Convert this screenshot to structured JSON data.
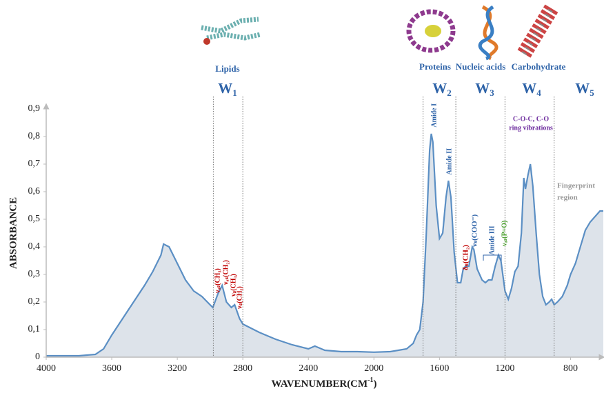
{
  "chart_data": {
    "type": "area",
    "y_label": "ABSORBANCE",
    "x_label": {
      "text": "WAVENUMBER(CM",
      "sup": "-1",
      "end": ")"
    },
    "xlim": [
      4000,
      600
    ],
    "ylim": [
      0,
      0.9
    ],
    "xticks": [
      4000,
      3600,
      3200,
      2800,
      2400,
      2000,
      1600,
      1200,
      800
    ],
    "yticks": [
      0,
      {
        "value": 0.1,
        "label": "0,1"
      },
      {
        "value": 0.2,
        "label": "0,2"
      },
      {
        "value": 0.3,
        "label": "0,3"
      },
      {
        "value": 0.4,
        "label": "0,4"
      },
      {
        "value": 0.5,
        "label": "0,5"
      },
      {
        "value": 0.6,
        "label": "0,6"
      },
      {
        "value": 0.7,
        "label": "0,7"
      },
      {
        "value": 0.8,
        "label": "0,8"
      },
      {
        "value": 0.9,
        "label": "0,9"
      }
    ],
    "line_color": "#5b8fc4",
    "fill_color": "#dde3ea",
    "x": [
      4000,
      3800,
      3700,
      3650,
      3600,
      3500,
      3400,
      3350,
      3300,
      3284,
      3250,
      3200,
      3150,
      3100,
      3050,
      3000,
      2983,
      2952,
      2926,
      2900,
      2870,
      2850,
      2820,
      2800,
      2700,
      2600,
      2500,
      2400,
      2360,
      2340,
      2300,
      2200,
      2100,
      2000,
      1900,
      1800,
      1760,
      1740,
      1720,
      1700,
      1680,
      1660,
      1650,
      1640,
      1620,
      1600,
      1580,
      1560,
      1545,
      1530,
      1510,
      1490,
      1470,
      1455,
      1440,
      1420,
      1400,
      1390,
      1370,
      1340,
      1320,
      1300,
      1280,
      1260,
      1240,
      1225,
      1200,
      1180,
      1160,
      1140,
      1120,
      1100,
      1085,
      1075,
      1060,
      1045,
      1030,
      1010,
      990,
      970,
      950,
      930,
      915,
      900,
      880,
      850,
      820,
      800,
      770,
      740,
      710,
      680,
      650,
      620,
      600
    ],
    "values": [
      0.005,
      0.005,
      0.01,
      0.03,
      0.08,
      0.17,
      0.26,
      0.31,
      0.37,
      0.41,
      0.4,
      0.34,
      0.28,
      0.24,
      0.22,
      0.19,
      0.18,
      0.23,
      0.26,
      0.2,
      0.18,
      0.19,
      0.14,
      0.12,
      0.09,
      0.065,
      0.045,
      0.03,
      0.04,
      0.035,
      0.025,
      0.02,
      0.02,
      0.018,
      0.02,
      0.03,
      0.05,
      0.08,
      0.1,
      0.2,
      0.45,
      0.75,
      0.81,
      0.78,
      0.55,
      0.43,
      0.45,
      0.58,
      0.64,
      0.58,
      0.38,
      0.27,
      0.27,
      0.32,
      0.33,
      0.33,
      0.4,
      0.39,
      0.32,
      0.28,
      0.27,
      0.28,
      0.28,
      0.33,
      0.37,
      0.35,
      0.24,
      0.21,
      0.25,
      0.31,
      0.33,
      0.45,
      0.65,
      0.61,
      0.66,
      0.7,
      0.62,
      0.45,
      0.3,
      0.22,
      0.19,
      0.2,
      0.21,
      0.19,
      0.2,
      0.22,
      0.26,
      0.3,
      0.34,
      0.4,
      0.46,
      0.49,
      0.51,
      0.53,
      0.53
    ],
    "dividers": [
      2980,
      2800,
      1700,
      1500,
      1200,
      900
    ],
    "groups": [
      "Lipids",
      "Proteins",
      "Nucleic acids",
      "Carbohydrate"
    ],
    "windows": [
      {
        "text": "W",
        "sub": "1"
      },
      {
        "text": "W",
        "sub": "2"
      },
      {
        "text": "W",
        "sub": "3"
      },
      {
        "text": "W",
        "sub": "4"
      },
      {
        "text": "W",
        "sub": "5"
      }
    ],
    "annotations": [
      {
        "text": "Amide I",
        "color": "#2e63a8"
      },
      {
        "text": "Amide II",
        "color": "#2e63a8"
      },
      {
        "text": "Amide III",
        "color": "#2e63a8"
      },
      {
        "text": "νₐₛ(CH₃)",
        "color": "#c00000"
      },
      {
        "text": "νₐₛ(CH₂)",
        "color": "#c00000"
      },
      {
        "text": "νₛ(CH₃)",
        "color": "#c00000"
      },
      {
        "text": "νₛ(CH₂)",
        "color": "#c00000"
      },
      {
        "text": "δₛ(CH₂)",
        "color": "#c00000"
      },
      {
        "text": "νₛ(COO⁻)",
        "color": "#2e63a8"
      },
      {
        "text": "νₐₛ(P=O)",
        "color": "#4aa02c"
      },
      {
        "text": "C-O-C, C-O",
        "color": "#7030a0"
      },
      {
        "text": "ring vibrations",
        "color": "#7030a0"
      },
      {
        "text": "Fingerprint",
        "color": "#9a9a9a"
      },
      {
        "text": "region",
        "color": "#9a9a9a"
      }
    ]
  }
}
